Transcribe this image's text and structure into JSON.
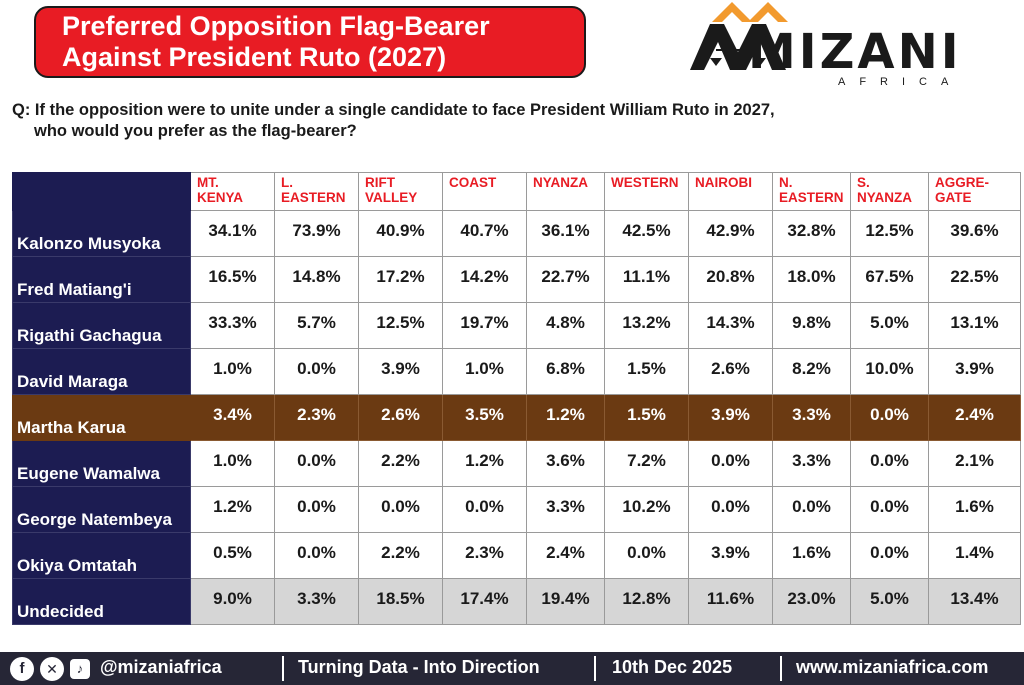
{
  "header": {
    "title_line1": "Preferred Opposition Flag-Bearer",
    "title_line2": "Against President Ruto (2027)",
    "logo_word": "MIZANI",
    "logo_sub": "AFRICA"
  },
  "question": {
    "line1": "Q: If the opposition were to unite under a single candidate to face President William Ruto in 2027,",
    "line2": "who would you prefer as the flag-bearer?"
  },
  "colors": {
    "title_bg": "#e81c24",
    "header_text": "#e81c24",
    "name_bg": "#1c1c52",
    "highlight_bg": "#6b3a12",
    "undecided_bg": "#d6d6d6",
    "footer_bg": "#262636"
  },
  "chart_data": {
    "type": "table",
    "columns": [
      [
        "MT.",
        "KENYA"
      ],
      [
        "L.",
        "EASTERN"
      ],
      [
        "RIFT",
        "VALLEY"
      ],
      [
        "COAST"
      ],
      [
        "NYANZA"
      ],
      [
        "WESTERN"
      ],
      [
        "NAIROBI"
      ],
      [
        "N.",
        "EASTERN"
      ],
      [
        "S. NYANZA"
      ],
      [
        "AGGRE-",
        "GATE"
      ]
    ],
    "rows": [
      {
        "name": "Kalonzo Musyoka",
        "values": [
          "34.1%",
          "73.9%",
          "40.9%",
          "40.7%",
          "36.1%",
          "42.5%",
          "42.9%",
          "32.8%",
          "12.5%",
          "39.6%"
        ]
      },
      {
        "name": "Fred Matiang'i",
        "values": [
          "16.5%",
          "14.8%",
          "17.2%",
          "14.2%",
          "22.7%",
          "11.1%",
          "20.8%",
          "18.0%",
          "67.5%",
          "22.5%"
        ]
      },
      {
        "name": "Rigathi Gachagua",
        "values": [
          "33.3%",
          "5.7%",
          "12.5%",
          "19.7%",
          "4.8%",
          "13.2%",
          "14.3%",
          "9.8%",
          "5.0%",
          "13.1%"
        ]
      },
      {
        "name": "David Maraga",
        "values": [
          "1.0%",
          "0.0%",
          "3.9%",
          "1.0%",
          "6.8%",
          "1.5%",
          "2.6%",
          "8.2%",
          "10.0%",
          "3.9%"
        ]
      },
      {
        "name": "Martha Karua",
        "values": [
          "3.4%",
          "2.3%",
          "2.6%",
          "3.5%",
          "1.2%",
          "1.5%",
          "3.9%",
          "3.3%",
          "0.0%",
          "2.4%"
        ],
        "highlight": true
      },
      {
        "name": "Eugene Wamalwa",
        "values": [
          "1.0%",
          "0.0%",
          "2.2%",
          "1.2%",
          "3.6%",
          "7.2%",
          "0.0%",
          "3.3%",
          "0.0%",
          "2.1%"
        ]
      },
      {
        "name": "George Natembeya",
        "values": [
          "1.2%",
          "0.0%",
          "0.0%",
          "0.0%",
          "3.3%",
          "10.2%",
          "0.0%",
          "0.0%",
          "0.0%",
          "1.6%"
        ]
      },
      {
        "name": "Okiya Omtatah",
        "values": [
          "0.5%",
          "0.0%",
          "2.2%",
          "2.3%",
          "2.4%",
          "0.0%",
          "3.9%",
          "1.6%",
          "0.0%",
          "1.4%"
        ]
      },
      {
        "name": "Undecided",
        "values": [
          "9.0%",
          "3.3%",
          "18.5%",
          "17.4%",
          "19.4%",
          "12.8%",
          "11.6%",
          "23.0%",
          "5.0%",
          "13.4%"
        ],
        "undecided": true
      }
    ]
  },
  "footer": {
    "icons": [
      "facebook-icon",
      "x-icon",
      "tiktok-icon"
    ],
    "handle": "@mizaniafrica",
    "tagline": "Turning Data - Into Direction",
    "date": "10th  Dec  2025",
    "website": "www.mizaniafrica.com"
  }
}
